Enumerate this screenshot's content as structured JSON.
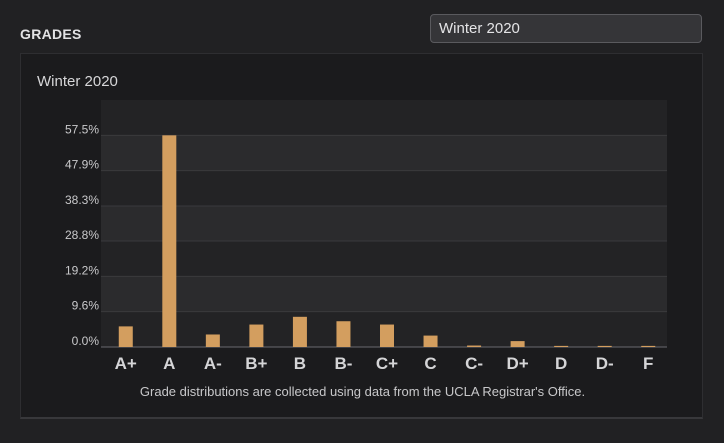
{
  "section": {
    "title": "GRADES"
  },
  "term_select": {
    "value": "Winter 2020"
  },
  "panel": {
    "chart_title": "Winter 2020",
    "footnote": "Grade distributions are collected using data from the UCLA Registrar's Office."
  },
  "colors": {
    "bar": "#d39e5f",
    "band_dark": "#232325",
    "band_light": "#2b2b2d",
    "background": "#212123"
  },
  "chart_data": {
    "type": "bar",
    "title": "Winter 2020",
    "xlabel": "",
    "ylabel": "",
    "categories": [
      "A+",
      "A",
      "A-",
      "B+",
      "B",
      "B-",
      "C+",
      "C",
      "C-",
      "D+",
      "D",
      "D-",
      "F"
    ],
    "values": [
      5.6,
      57.5,
      3.4,
      6.1,
      8.2,
      7.0,
      6.1,
      3.1,
      0.4,
      1.6,
      0.3,
      0.3,
      0.3
    ],
    "y_ticks": [
      "0.0%",
      "9.6%",
      "19.2%",
      "28.8%",
      "38.3%",
      "47.9%",
      "57.5%"
    ],
    "ylim": [
      0,
      67.1
    ],
    "grid": "alternating horizontal bands"
  }
}
